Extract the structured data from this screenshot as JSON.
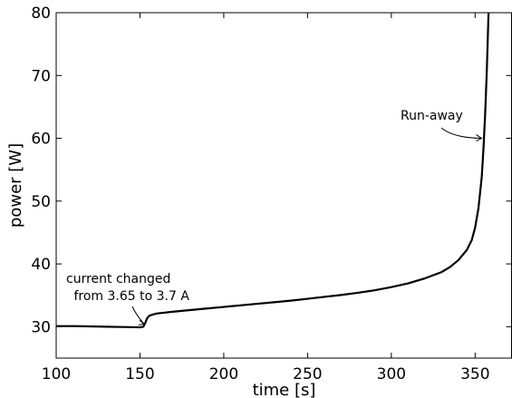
{
  "chart_data": {
    "type": "line",
    "title": "",
    "xlabel": "time [s]",
    "ylabel": "power [W]",
    "xlim": [
      100,
      372
    ],
    "ylim": [
      25,
      80
    ],
    "xticks": [
      100,
      150,
      200,
      250,
      300,
      350
    ],
    "yticks": [
      30,
      40,
      50,
      60,
      70,
      80
    ],
    "grid": false,
    "series": [
      {
        "name": "",
        "color": "#000000",
        "x": [
          100,
          110,
          120,
          130,
          140,
          150,
          152,
          153,
          154,
          155,
          156,
          158,
          160,
          170,
          180,
          190,
          200,
          210,
          220,
          230,
          240,
          250,
          260,
          270,
          280,
          290,
          300,
          310,
          320,
          330,
          335,
          340,
          345,
          348,
          350,
          352,
          354,
          355,
          356,
          357,
          357.5,
          358
        ],
        "y": [
          30.1,
          30.1,
          30.05,
          30.0,
          29.95,
          29.9,
          30.0,
          30.5,
          31.2,
          31.6,
          31.8,
          31.95,
          32.1,
          32.4,
          32.65,
          32.9,
          33.15,
          33.4,
          33.65,
          33.9,
          34.15,
          34.45,
          34.75,
          35.05,
          35.4,
          35.8,
          36.3,
          36.9,
          37.7,
          38.7,
          39.5,
          40.6,
          42.2,
          43.8,
          45.8,
          48.9,
          54.0,
          58.5,
          64.0,
          71.0,
          75.5,
          80.0
        ]
      }
    ],
    "annotations": [
      {
        "text": [
          "current changed",
          " from 3.65 to 3.7 A"
        ],
        "point": [
          153,
          30.0
        ]
      },
      {
        "text": [
          "Run-away"
        ],
        "point": [
          355.5,
          60.0
        ]
      }
    ]
  }
}
